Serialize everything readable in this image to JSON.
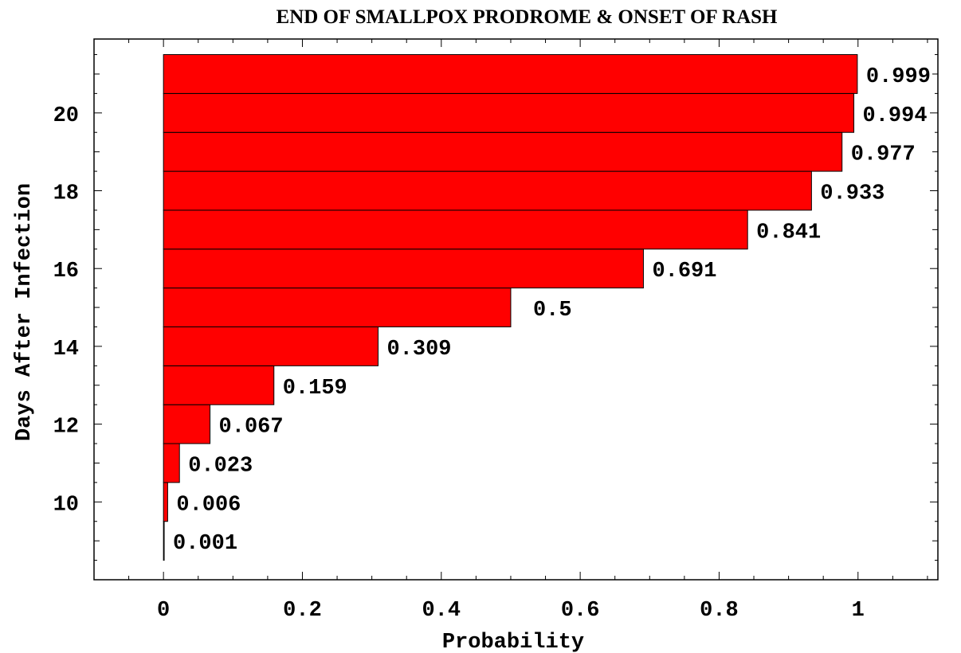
{
  "chart_data": {
    "type": "bar",
    "orientation": "horizontal",
    "title": "END OF SMALLPOX PRODROME & ONSET OF RASH",
    "xlabel": "Probability",
    "ylabel": "Days After Infection",
    "bar_color": "#ff0000",
    "categories": [
      9,
      10,
      11,
      12,
      13,
      14,
      15,
      16,
      17,
      18,
      19,
      20,
      21
    ],
    "values": [
      0.001,
      0.006,
      0.023,
      0.067,
      0.159,
      0.309,
      0.5,
      0.691,
      0.841,
      0.933,
      0.977,
      0.994,
      0.999
    ],
    "value_labels": [
      "0.001",
      "0.006",
      "0.023",
      "0.067",
      "0.159",
      "0.309",
      "0.5",
      "0.691",
      "0.841",
      "0.933",
      "0.977",
      "0.994",
      "0.999"
    ],
    "xlim": [
      -0.1,
      1.115
    ],
    "ylim": [
      8.0,
      21.9
    ],
    "xticks": [
      0,
      0.2,
      0.4,
      0.6,
      0.8,
      1
    ],
    "xtick_labels": [
      "0",
      "0.2",
      "0.4",
      "0.6",
      "0.8",
      "1"
    ],
    "yticks": [
      10,
      12,
      14,
      16,
      18,
      20
    ],
    "ytick_labels": [
      "10",
      "12",
      "14",
      "16",
      "18",
      "20"
    ],
    "grid": false,
    "frame": true
  }
}
